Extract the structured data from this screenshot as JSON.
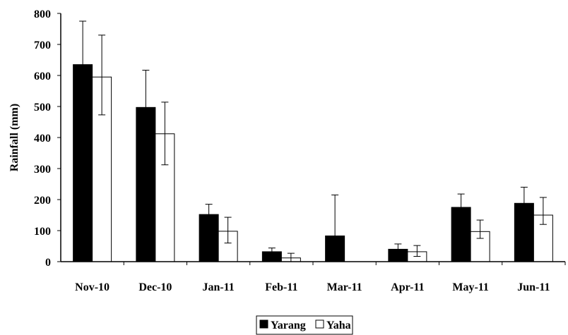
{
  "chart_data": {
    "type": "bar",
    "categories": [
      "Nov-10",
      "Dec-10",
      "Jan-11",
      "Feb-11",
      "Mar-11",
      "Apr-11",
      "May-11",
      "Jun-11"
    ],
    "series": [
      {
        "name": "Yarang",
        "values": [
          635,
          497,
          152,
          32,
          83,
          40,
          175,
          188
        ],
        "error_upper": [
          140,
          120,
          33,
          12,
          132,
          17,
          43,
          52
        ],
        "color": "#000000"
      },
      {
        "name": "Yaha",
        "values": [
          595,
          412,
          98,
          12,
          0,
          32,
          97,
          150
        ],
        "error_upper": [
          135,
          102,
          45,
          15,
          0,
          20,
          37,
          57
        ],
        "error_lower": [
          122,
          100,
          38,
          12,
          0,
          15,
          22,
          30
        ],
        "color": "#ffffff"
      }
    ],
    "title": "",
    "xlabel": "",
    "ylabel": "Rainfall (mm)",
    "ylim": [
      0,
      800
    ],
    "yticks": [
      "0",
      "100",
      "200",
      "300",
      "400",
      "500",
      "600",
      "700",
      "800"
    ],
    "grid": false,
    "legend_position": "bottom-center"
  }
}
